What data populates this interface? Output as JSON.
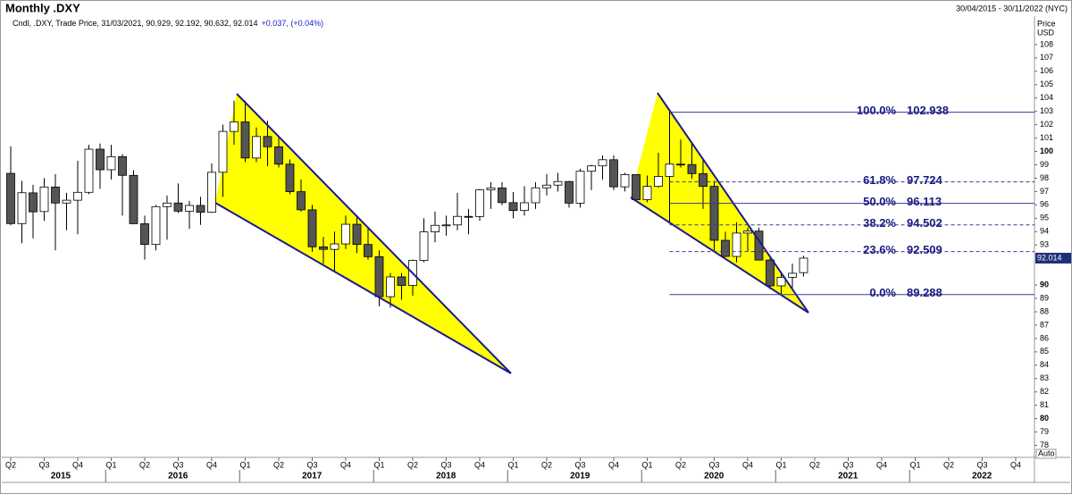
{
  "chart_data": {
    "type": "candlestick",
    "title": "Monthly .DXY",
    "date_range": "30/04/2015 - 30/11/2022 (NYC)",
    "legend": "Cndl, .DXY, Trade Price, 31/03/2021, 90.929, 92.192, 90.632, 92.014",
    "change": "+0.037, (+0.04%)",
    "price_label": "Price",
    "currency_label": "USD",
    "scale_mode": "Auto",
    "last_price": 92.014,
    "ylim": [
      77.1,
      110.0
    ],
    "yticks": [
      78,
      79,
      80,
      81,
      82,
      83,
      84,
      85,
      86,
      87,
      88,
      89,
      90,
      93,
      94,
      95,
      96,
      97,
      98,
      99,
      100,
      101,
      102,
      103,
      104,
      105,
      106,
      107,
      108
    ],
    "quarters": [
      "Q2",
      "Q3",
      "Q4",
      "Q1",
      "Q2",
      "Q3",
      "Q4",
      "Q1",
      "Q2",
      "Q3",
      "Q4",
      "Q1",
      "Q2",
      "Q3",
      "Q4",
      "Q1",
      "Q2",
      "Q3",
      "Q4",
      "Q1",
      "Q2",
      "Q3",
      "Q4",
      "Q1",
      "Q2",
      "Q3",
      "Q4",
      "Q1",
      "Q2",
      "Q3",
      "Q4"
    ],
    "years": [
      "2015",
      "2016",
      "2017",
      "2018",
      "2019",
      "2020",
      "2021",
      "2022"
    ],
    "open": [
      98.36,
      94.6,
      96.9,
      95.5,
      97.34,
      96.14,
      96.35,
      96.94,
      100.17,
      98.63,
      99.61,
      98.21,
      94.59,
      93.04,
      95.87,
      96.14,
      95.53,
      95.96,
      95.45,
      98.44,
      101.5,
      102.21,
      99.51,
      101.12,
      100.35,
      99.05,
      96.99,
      95.63,
      92.86,
      92.67,
      93.08,
      94.55,
      93.04,
      92.12,
      89.13,
      90.61,
      89.97,
      91.84,
      93.98,
      94.47,
      94.5,
      95.14,
      95.13,
      97.13,
      97.27,
      96.17,
      95.58,
      96.16,
      97.28,
      97.48,
      97.75,
      96.13,
      98.52,
      98.92,
      99.38,
      97.35,
      98.27,
      96.39,
      97.39,
      98.13,
      99.05,
      99.02,
      98.34,
      97.39,
      93.35,
      92.14,
      93.89,
      94.04,
      91.87,
      89.94,
      90.58,
      90.929
    ],
    "high": [
      100.39,
      97.8,
      97.5,
      98.0,
      98.3,
      96.9,
      99.3,
      100.5,
      100.6,
      100.5,
      99.8,
      98.6,
      95.2,
      96.0,
      96.7,
      97.6,
      96.3,
      96.6,
      99.1,
      102.0,
      103.8,
      103.8,
      101.8,
      102.3,
      101.0,
      99.4,
      97.9,
      96.0,
      93.6,
      94.0,
      95.2,
      95.2,
      94.2,
      92.6,
      90.9,
      90.9,
      91.9,
      95.0,
      95.5,
      95.2,
      96.9,
      95.7,
      97.2,
      97.7,
      97.7,
      96.96,
      97.4,
      97.7,
      98.3,
      98.4,
      97.8,
      98.7,
      99.0,
      99.7,
      99.7,
      98.4,
      98.3,
      98.2,
      99.9,
      102.99,
      100.9,
      100.6,
      99.5,
      97.8,
      93.99,
      94.7,
      94.3,
      94.3,
      92.0,
      91.0,
      91.6,
      92.192
    ],
    "low": [
      94.47,
      93.13,
      93.5,
      94.8,
      92.6,
      94.1,
      93.8,
      96.8,
      97.2,
      97.9,
      95.2,
      94.6,
      91.9,
      92.6,
      93.4,
      95.4,
      94.2,
      94.5,
      95.4,
      96.6,
      100.5,
      99.2,
      99.2,
      98.9,
      98.8,
      96.8,
      95.5,
      92.5,
      91.6,
      91.0,
      92.7,
      92.4,
      91.9,
      88.4,
      88.3,
      88.9,
      89.2,
      91.7,
      93.2,
      93.7,
      94.1,
      93.8,
      94.8,
      95.7,
      95.98,
      95.0,
      95.2,
      95.7,
      96.7,
      97.0,
      95.8,
      95.8,
      97.1,
      97.9,
      97.1,
      97.0,
      96.4,
      96.2,
      97.3,
      94.6,
      98.8,
      97.96,
      95.7,
      92.5,
      92.1,
      91.7,
      92.5,
      91.9,
      89.7,
      89.2,
      89.7,
      90.632
    ],
    "close": [
      94.6,
      96.91,
      95.48,
      97.34,
      96.14,
      96.35,
      96.94,
      100.17,
      98.63,
      99.61,
      98.21,
      94.59,
      93.04,
      95.87,
      96.14,
      95.53,
      95.96,
      95.45,
      98.44,
      101.5,
      102.21,
      99.51,
      101.12,
      100.35,
      99.05,
      96.99,
      95.63,
      92.86,
      92.67,
      93.08,
      94.55,
      93.04,
      92.12,
      89.13,
      90.61,
      89.97,
      91.84,
      93.98,
      94.47,
      94.5,
      95.14,
      95.13,
      97.13,
      97.27,
      96.17,
      95.58,
      96.16,
      97.28,
      97.48,
      97.75,
      96.13,
      98.52,
      98.92,
      99.38,
      97.35,
      98.27,
      96.39,
      97.39,
      98.13,
      99.05,
      99.02,
      98.34,
      97.39,
      93.35,
      92.14,
      93.89,
      94.04,
      91.87,
      89.94,
      90.58,
      90.88,
      92.014
    ],
    "fibonacci": [
      {
        "level": "100.0%",
        "price": 102.938,
        "dashed": false
      },
      {
        "level": "61.8%",
        "price": 97.724,
        "dashed": true
      },
      {
        "level": "50.0%",
        "price": 96.113,
        "dashed": false
      },
      {
        "level": "38.2%",
        "price": 94.502,
        "dashed": true
      },
      {
        "level": "23.6%",
        "price": 92.509,
        "dashed": true
      },
      {
        "level": "0.0%",
        "price": 89.288,
        "dashed": false
      }
    ]
  }
}
